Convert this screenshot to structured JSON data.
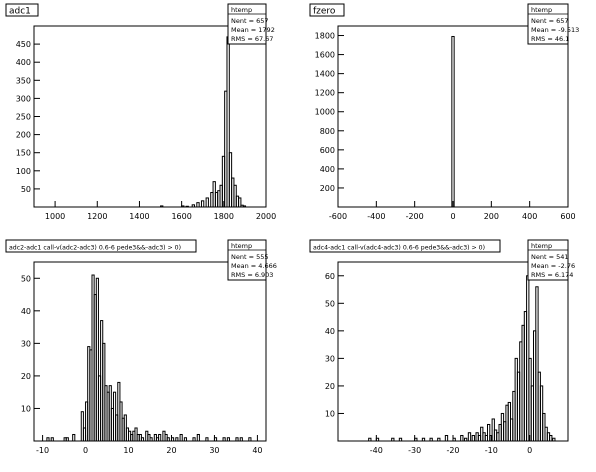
{
  "chart_data": [
    {
      "type": "bar",
      "title": "adc1",
      "stats": {
        "header": "htemp",
        "entries": "Nent = 657",
        "mean": "Mean = 1792",
        "rms": "RMS = 67.67"
      },
      "xlim": [
        900,
        2000
      ],
      "ylim": [
        0,
        500
      ],
      "xticks": [
        1000,
        1200,
        1400,
        1600,
        1800,
        2000
      ],
      "xtick_labels": [
        "1000",
        "1200",
        "1400",
        "1600",
        "1800",
        "2000"
      ],
      "yticks": [
        50,
        100,
        150,
        200,
        250,
        300,
        350,
        400,
        450
      ],
      "ytick_labels": [
        "50",
        "100",
        "150",
        "200",
        "250",
        "300",
        "350",
        "400",
        "450"
      ],
      "bin_width": 11,
      "bins": [
        [
          1500,
          3
        ],
        [
          1600,
          3
        ],
        [
          1621,
          2
        ],
        [
          1650,
          6
        ],
        [
          1672,
          12
        ],
        [
          1694,
          17
        ],
        [
          1716,
          25
        ],
        [
          1738,
          40
        ],
        [
          1749,
          70
        ],
        [
          1760,
          40
        ],
        [
          1771,
          45
        ],
        [
          1782,
          60
        ],
        [
          1793,
          140
        ],
        [
          1804,
          320
        ],
        [
          1815,
          470
        ],
        [
          1826,
          150
        ],
        [
          1837,
          80
        ],
        [
          1848,
          60
        ],
        [
          1859,
          30
        ],
        [
          1870,
          25
        ],
        [
          1881,
          5
        ],
        [
          1892,
          3
        ]
      ]
    },
    {
      "type": "bar",
      "title": "fzero",
      "stats": {
        "header": "htemp",
        "entries": "Nent = 657",
        "mean": "Mean = -9.513",
        "rms": "RMS = 46.1"
      },
      "xlim": [
        -600,
        600
      ],
      "ylim": [
        0,
        1900
      ],
      "xticks": [
        -600,
        -400,
        -200,
        0,
        200,
        400,
        600
      ],
      "xtick_labels": [
        "-600",
        "-400",
        "-200",
        "0",
        "200",
        "400",
        "600"
      ],
      "yticks": [
        200,
        400,
        600,
        800,
        1000,
        1200,
        1400,
        1600,
        1800
      ],
      "ytick_labels": [
        "200",
        "400",
        "600",
        "800",
        "1000",
        "1200",
        "1400",
        "1600",
        "1800"
      ],
      "bin_width": 12,
      "bins": [
        [
          -6,
          1790
        ]
      ]
    },
    {
      "type": "bar",
      "title": "adc2-adc1 call-v(adc2-adc3) 0.6-6 pede3&&-adc3) > 0)",
      "stats": {
        "header": "htemp",
        "entries": "Nent = 555",
        "mean": "Mean = 4.666",
        "rms": "RMS = 6.903"
      },
      "xlim": [
        -12,
        42
      ],
      "ylim": [
        0,
        55
      ],
      "xticks": [
        -10,
        0,
        10,
        20,
        30,
        40
      ],
      "xtick_labels": [
        "-10",
        "0",
        "10",
        "20",
        "30",
        "40"
      ],
      "yticks": [
        10,
        20,
        30,
        40,
        50
      ],
      "ytick_labels": [
        "10",
        "20",
        "30",
        "40",
        "50"
      ],
      "bin_width": 0.5,
      "bins": [
        [
          -9,
          1
        ],
        [
          -8,
          1
        ],
        [
          -5,
          1
        ],
        [
          -4.5,
          1
        ],
        [
          -3,
          2
        ],
        [
          -1,
          9
        ],
        [
          -0.5,
          4
        ],
        [
          0,
          12
        ],
        [
          0.5,
          29
        ],
        [
          1,
          28
        ],
        [
          1.5,
          51
        ],
        [
          2,
          45
        ],
        [
          2.5,
          50
        ],
        [
          3,
          20
        ],
        [
          3.5,
          37
        ],
        [
          4,
          30
        ],
        [
          4.5,
          17
        ],
        [
          5,
          15
        ],
        [
          5.5,
          17
        ],
        [
          6,
          10
        ],
        [
          6.5,
          15
        ],
        [
          7,
          8
        ],
        [
          7.5,
          18
        ],
        [
          8,
          12
        ],
        [
          8.5,
          7
        ],
        [
          9,
          8
        ],
        [
          9.5,
          4
        ],
        [
          10,
          3
        ],
        [
          10.5,
          2
        ],
        [
          11,
          3
        ],
        [
          11.5,
          4
        ],
        [
          12,
          2
        ],
        [
          12.5,
          2
        ],
        [
          13,
          1
        ],
        [
          14,
          3
        ],
        [
          14.5,
          2
        ],
        [
          15,
          1
        ],
        [
          16,
          2
        ],
        [
          16.5,
          1
        ],
        [
          17,
          2
        ],
        [
          18,
          3
        ],
        [
          18.5,
          2
        ],
        [
          19,
          1
        ],
        [
          20,
          1
        ],
        [
          21,
          1
        ],
        [
          22,
          2
        ],
        [
          23,
          1
        ],
        [
          25,
          1
        ],
        [
          26,
          2
        ],
        [
          28,
          1
        ],
        [
          30,
          1
        ],
        [
          32,
          1
        ],
        [
          33,
          1
        ],
        [
          35,
          1
        ],
        [
          36,
          1
        ],
        [
          38,
          1
        ]
      ]
    },
    {
      "type": "bar",
      "title": "adc4-adc1 call-v(adc4-adc3) 0.6-6 pede3&&-adc3) > 0)",
      "stats": {
        "header": "htemp",
        "entries": "Nent = 541",
        "mean": "Mean = -2.76",
        "rms": "RMS = 6.174"
      },
      "xlim": [
        -50,
        10
      ],
      "ylim": [
        0,
        65
      ],
      "xticks": [
        -40,
        -30,
        -20,
        -10,
        0
      ],
      "xtick_labels": [
        "-40",
        "-30",
        "-20",
        "-10",
        "0"
      ],
      "yticks": [
        10,
        20,
        30,
        40,
        50,
        60
      ],
      "ytick_labels": [
        "10",
        "20",
        "30",
        "40",
        "50",
        "60"
      ],
      "bin_width": 0.6,
      "bins": [
        [
          -42,
          1
        ],
        [
          -40,
          1
        ],
        [
          -36,
          1
        ],
        [
          -34,
          1
        ],
        [
          -30,
          1
        ],
        [
          -28,
          1
        ],
        [
          -26,
          1
        ],
        [
          -24,
          1
        ],
        [
          -22,
          2
        ],
        [
          -20,
          1
        ],
        [
          -18,
          2
        ],
        [
          -17,
          1
        ],
        [
          -16,
          3
        ],
        [
          -15,
          2
        ],
        [
          -14,
          3
        ],
        [
          -13.4,
          2
        ],
        [
          -12.8,
          5
        ],
        [
          -12.2,
          3
        ],
        [
          -11.6,
          2
        ],
        [
          -11,
          6
        ],
        [
          -10.4,
          2
        ],
        [
          -9.8,
          8
        ],
        [
          -9.2,
          4
        ],
        [
          -8.6,
          3
        ],
        [
          -8,
          6
        ],
        [
          -7.4,
          10
        ],
        [
          -6.8,
          7
        ],
        [
          -6.2,
          13
        ],
        [
          -5.6,
          14
        ],
        [
          -5,
          8
        ],
        [
          -4.4,
          18
        ],
        [
          -3.8,
          30
        ],
        [
          -3.2,
          25
        ],
        [
          -2.6,
          36
        ],
        [
          -2,
          42
        ],
        [
          -1.4,
          47
        ],
        [
          -0.8,
          60
        ],
        [
          -0.2,
          30
        ],
        [
          0.4,
          20
        ],
        [
          1,
          40
        ],
        [
          1.6,
          56
        ],
        [
          2.2,
          25
        ],
        [
          2.8,
          20
        ],
        [
          3.4,
          10
        ],
        [
          4,
          5
        ],
        [
          4.6,
          3
        ],
        [
          5.2,
          2
        ],
        [
          6,
          1
        ]
      ]
    }
  ]
}
